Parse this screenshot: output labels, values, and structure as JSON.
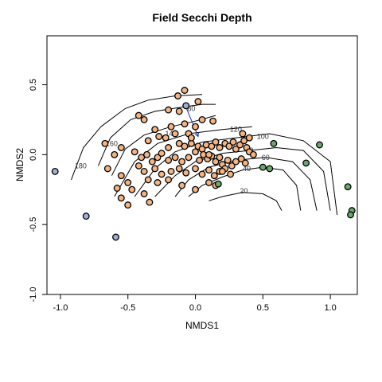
{
  "chart_data": {
    "type": "scatter",
    "title": "Field Secchi Depth",
    "xlabel": "NMDS1",
    "ylabel": "NMDS2",
    "xlim": [
      -1.1,
      1.2
    ],
    "ylim": [
      -1.0,
      0.85
    ],
    "x_ticks": [
      -1.0,
      -0.5,
      0.0,
      0.5,
      1.0
    ],
    "x_tick_labels": [
      "-1.0",
      "-0.5",
      "0.0",
      "0.5",
      "1.0"
    ],
    "y_ticks": [
      -1.0,
      -0.5,
      0.0,
      0.5
    ],
    "y_tick_labels": [
      "-1.0",
      "-0.5",
      "0.0",
      "0.5"
    ],
    "grid": false,
    "colors": {
      "orange": "#f4b482",
      "green": "#6aa86a",
      "blue": "#9fb0d4",
      "outline": "#000000",
      "contour": "#000000"
    },
    "contour_levels": [
      {
        "label": "20",
        "label_at": [
          0.36,
          -0.26
        ],
        "path": [
          [
            0.1,
            -0.33
          ],
          [
            0.2,
            -0.3
          ],
          [
            0.35,
            -0.27
          ],
          [
            0.5,
            -0.28
          ],
          [
            0.6,
            -0.33
          ],
          [
            0.64,
            -0.4
          ]
        ]
      },
      {
        "label": "40",
        "label_at": [
          0.38,
          -0.1
        ],
        "path": [
          [
            -0.05,
            -0.3
          ],
          [
            0.05,
            -0.22
          ],
          [
            0.2,
            -0.16
          ],
          [
            0.35,
            -0.11
          ],
          [
            0.5,
            -0.09
          ],
          [
            0.65,
            -0.11
          ],
          [
            0.75,
            -0.22
          ],
          [
            0.78,
            -0.4
          ]
        ]
      },
      {
        "label": "60",
        "label_at": [
          0.52,
          -0.02
        ],
        "path": [
          [
            -0.15,
            -0.3
          ],
          [
            -0.05,
            -0.18
          ],
          [
            0.1,
            -0.09
          ],
          [
            0.3,
            -0.04
          ],
          [
            0.52,
            -0.02
          ],
          [
            0.72,
            -0.05
          ],
          [
            0.85,
            -0.18
          ],
          [
            0.9,
            -0.4
          ]
        ]
      },
      {
        "label": "80",
        "label_at": [
          0.4,
          0.03
        ],
        "path": [
          [
            -0.3,
            -0.3
          ],
          [
            -0.15,
            -0.15
          ],
          [
            0.0,
            -0.05
          ],
          [
            0.2,
            0.01
          ],
          [
            0.4,
            0.03
          ],
          [
            0.6,
            0.05
          ],
          [
            0.8,
            0.03
          ],
          [
            0.95,
            -0.12
          ],
          [
            1.0,
            -0.4
          ]
        ]
      },
      {
        "label": "100",
        "label_at": [
          0.5,
          0.13
        ],
        "path": [
          [
            -0.45,
            -0.3
          ],
          [
            -0.3,
            -0.1
          ],
          [
            -0.15,
            0.02
          ],
          [
            0.05,
            0.09
          ],
          [
            0.3,
            0.12
          ],
          [
            0.55,
            0.15
          ],
          [
            0.8,
            0.1
          ],
          [
            1.0,
            -0.05
          ],
          [
            1.05,
            -0.43
          ]
        ]
      },
      {
        "label": "120",
        "label_at": [
          0.3,
          0.18
        ],
        "path": [
          [
            -0.6,
            -0.3
          ],
          [
            -0.45,
            -0.05
          ],
          [
            -0.28,
            0.08
          ],
          [
            -0.05,
            0.15
          ],
          [
            0.2,
            0.18
          ],
          [
            0.42,
            0.2
          ]
        ]
      },
      {
        "label": "140",
        "label_at": [
          -0.18,
          0.15
        ],
        "path": [
          [
            -0.62,
            -0.15
          ],
          [
            -0.52,
            0.04
          ],
          [
            -0.38,
            0.14
          ],
          [
            -0.18,
            0.2
          ],
          [
            0.0,
            0.24
          ],
          [
            0.15,
            0.28
          ]
        ]
      },
      {
        "label": "160",
        "label_at": [
          -0.62,
          0.08
        ],
        "path": [
          [
            -0.72,
            -0.08
          ],
          [
            -0.63,
            0.12
          ],
          [
            -0.48,
            0.25
          ],
          [
            -0.3,
            0.31
          ],
          [
            -0.1,
            0.34
          ],
          [
            0.05,
            0.36
          ],
          [
            0.15,
            0.36
          ]
        ]
      },
      {
        "label": "180",
        "label_at": [
          -0.85,
          -0.08
        ],
        "path": [
          [
            -0.92,
            -0.18
          ],
          [
            -0.83,
            0.05
          ],
          [
            -0.7,
            0.2
          ],
          [
            -0.52,
            0.33
          ],
          [
            -0.35,
            0.39
          ],
          [
            -0.15,
            0.42
          ],
          [
            0.05,
            0.43
          ]
        ]
      },
      {
        "label": "80",
        "label_at": [
          -0.03,
          0.33
        ],
        "path": []
      }
    ],
    "arrow": {
      "from": [
        -0.07,
        0.34
      ],
      "to": [
        0.02,
        0.13
      ]
    },
    "series": [
      {
        "color_key": "orange",
        "points": [
          [
            -0.08,
            0.46
          ],
          [
            -0.13,
            0.42
          ],
          [
            0.02,
            0.38
          ],
          [
            -0.12,
            0.31
          ],
          [
            -0.2,
            0.32
          ],
          [
            -0.42,
            0.28
          ],
          [
            -0.38,
            0.25
          ],
          [
            -0.18,
            0.2
          ],
          [
            -0.08,
            0.22
          ],
          [
            0.05,
            0.25
          ],
          [
            0.13,
            0.24
          ],
          [
            -0.3,
            0.18
          ],
          [
            -0.27,
            0.13
          ],
          [
            -0.22,
            0.12
          ],
          [
            -0.15,
            0.15
          ],
          [
            -0.05,
            0.15
          ],
          [
            0.0,
            0.2
          ],
          [
            -0.35,
            0.1
          ],
          [
            -0.12,
            0.08
          ],
          [
            -0.2,
            0.05
          ],
          [
            -0.08,
            0.06
          ],
          [
            -0.03,
            0.08
          ],
          [
            0.02,
            0.06
          ],
          [
            0.05,
            0.04
          ],
          [
            0.08,
            0.07
          ],
          [
            0.12,
            0.06
          ],
          [
            0.15,
            0.09
          ],
          [
            0.18,
            0.05
          ],
          [
            0.22,
            0.08
          ],
          [
            0.25,
            0.06
          ],
          [
            0.28,
            0.09
          ],
          [
            0.3,
            0.04
          ],
          [
            0.33,
            0.07
          ],
          [
            0.36,
            0.1
          ],
          [
            0.38,
            0.05
          ],
          [
            0.4,
            0.02
          ],
          [
            0.43,
            0.0
          ],
          [
            0.35,
            0.15
          ],
          [
            0.4,
            0.12
          ],
          [
            -0.45,
            0.02
          ],
          [
            -0.4,
            -0.02
          ],
          [
            -0.36,
            0.0
          ],
          [
            -0.32,
            -0.05
          ],
          [
            -0.28,
            -0.02
          ],
          [
            -0.25,
            0.01
          ],
          [
            -0.2,
            -0.04
          ],
          [
            -0.15,
            -0.02
          ],
          [
            -0.1,
            -0.05
          ],
          [
            -0.05,
            -0.02
          ],
          [
            0.0,
            0.02
          ],
          [
            0.03,
            -0.04
          ],
          [
            0.06,
            0.0
          ],
          [
            0.09,
            -0.03
          ],
          [
            0.12,
            -0.01
          ],
          [
            0.15,
            -0.05
          ],
          [
            0.18,
            -0.02
          ],
          [
            0.2,
            -0.07
          ],
          [
            0.24,
            -0.04
          ],
          [
            0.27,
            -0.08
          ],
          [
            0.3,
            -0.05
          ],
          [
            0.34,
            -0.03
          ],
          [
            0.37,
            -0.06
          ],
          [
            -0.42,
            -0.08
          ],
          [
            -0.38,
            -0.12
          ],
          [
            -0.3,
            -0.1
          ],
          [
            -0.25,
            -0.14
          ],
          [
            -0.18,
            -0.12
          ],
          [
            -0.12,
            -0.1
          ],
          [
            -0.07,
            -0.13
          ],
          [
            0.0,
            -0.1
          ],
          [
            0.05,
            -0.14
          ],
          [
            0.1,
            -0.11
          ],
          [
            0.14,
            -0.15
          ],
          [
            0.18,
            -0.12
          ],
          [
            0.22,
            -0.1
          ],
          [
            0.26,
            -0.14
          ],
          [
            -0.55,
            -0.15
          ],
          [
            -0.5,
            -0.2
          ],
          [
            -0.35,
            -0.18
          ],
          [
            -0.28,
            -0.2
          ],
          [
            -0.2,
            -0.18
          ],
          [
            -0.1,
            -0.22
          ],
          [
            0.0,
            -0.25
          ],
          [
            0.1,
            -0.2
          ],
          [
            0.15,
            -0.22
          ],
          [
            -0.58,
            -0.24
          ],
          [
            -0.47,
            -0.25
          ],
          [
            -0.38,
            -0.28
          ],
          [
            -0.55,
            -0.31
          ],
          [
            -0.5,
            -0.36
          ],
          [
            -0.34,
            -0.34
          ],
          [
            -0.6,
            0.0
          ],
          [
            -0.55,
            0.05
          ],
          [
            -0.65,
            -0.1
          ],
          [
            -0.67,
            0.08
          ],
          [
            -0.03,
            0.12
          ],
          [
            0.1,
            0.0
          ],
          [
            0.2,
            -0.12
          ]
        ]
      },
      {
        "color_key": "green",
        "points": [
          [
            0.58,
            0.08
          ],
          [
            0.92,
            0.07
          ],
          [
            0.55,
            -0.1
          ],
          [
            0.5,
            -0.09
          ],
          [
            0.82,
            -0.06
          ],
          [
            1.13,
            -0.23
          ],
          [
            0.17,
            -0.21
          ],
          [
            1.16,
            -0.4
          ],
          [
            1.15,
            -0.43
          ]
        ]
      },
      {
        "color_key": "blue",
        "points": [
          [
            -1.04,
            -0.12
          ],
          [
            -0.81,
            -0.44
          ],
          [
            -0.59,
            -0.59
          ],
          [
            -0.07,
            0.35
          ]
        ]
      }
    ]
  }
}
